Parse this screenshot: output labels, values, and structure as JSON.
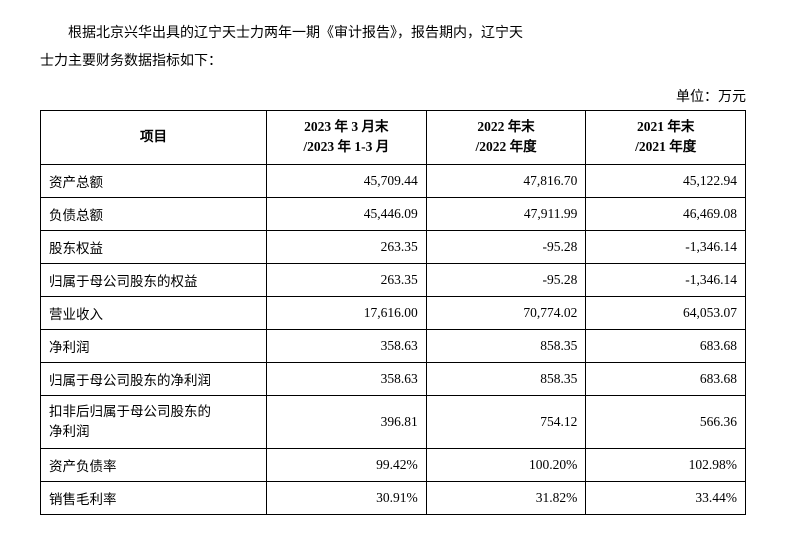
{
  "intro": {
    "line1": "根据北京兴华出具的辽宁天士力两年一期《审计报告》，报告期内，辽宁天",
    "line2": "士力主要财务数据指标如下："
  },
  "unit_label": "单位：万元",
  "table": {
    "headers": {
      "item": "项目",
      "period1_line1": "2023 年 3 月末",
      "period1_line2": "/2023 年 1-3 月",
      "period2_line1": "2022 年末",
      "period2_line2": "/2022 年度",
      "period3_line1": "2021 年末",
      "period3_line2": "/2021 年度"
    },
    "rows": [
      {
        "item": "资产总额",
        "v1": "45,709.44",
        "v2": "47,816.70",
        "v3": "45,122.94"
      },
      {
        "item": "负债总额",
        "v1": "45,446.09",
        "v2": "47,911.99",
        "v3": "46,469.08"
      },
      {
        "item": "股东权益",
        "v1": "263.35",
        "v2": "-95.28",
        "v3": "-1,346.14"
      },
      {
        "item": "归属于母公司股东的权益",
        "v1": "263.35",
        "v2": "-95.28",
        "v3": "-1,346.14"
      },
      {
        "item": "营业收入",
        "v1": "17,616.00",
        "v2": "70,774.02",
        "v3": "64,053.07"
      },
      {
        "item": "净利润",
        "v1": "358.63",
        "v2": "858.35",
        "v3": "683.68"
      },
      {
        "item": "归属于母公司股东的净利润",
        "v1": "358.63",
        "v2": "858.35",
        "v3": "683.68"
      },
      {
        "item": "扣非后归属于母公司股东的净利润",
        "v1": "396.81",
        "v2": "754.12",
        "v3": "566.36",
        "multiline": true
      },
      {
        "item": "资产负债率",
        "v1": "99.42%",
        "v2": "100.20%",
        "v3": "102.98%"
      },
      {
        "item": "销售毛利率",
        "v1": "30.91%",
        "v2": "31.82%",
        "v3": "33.44%"
      }
    ]
  }
}
